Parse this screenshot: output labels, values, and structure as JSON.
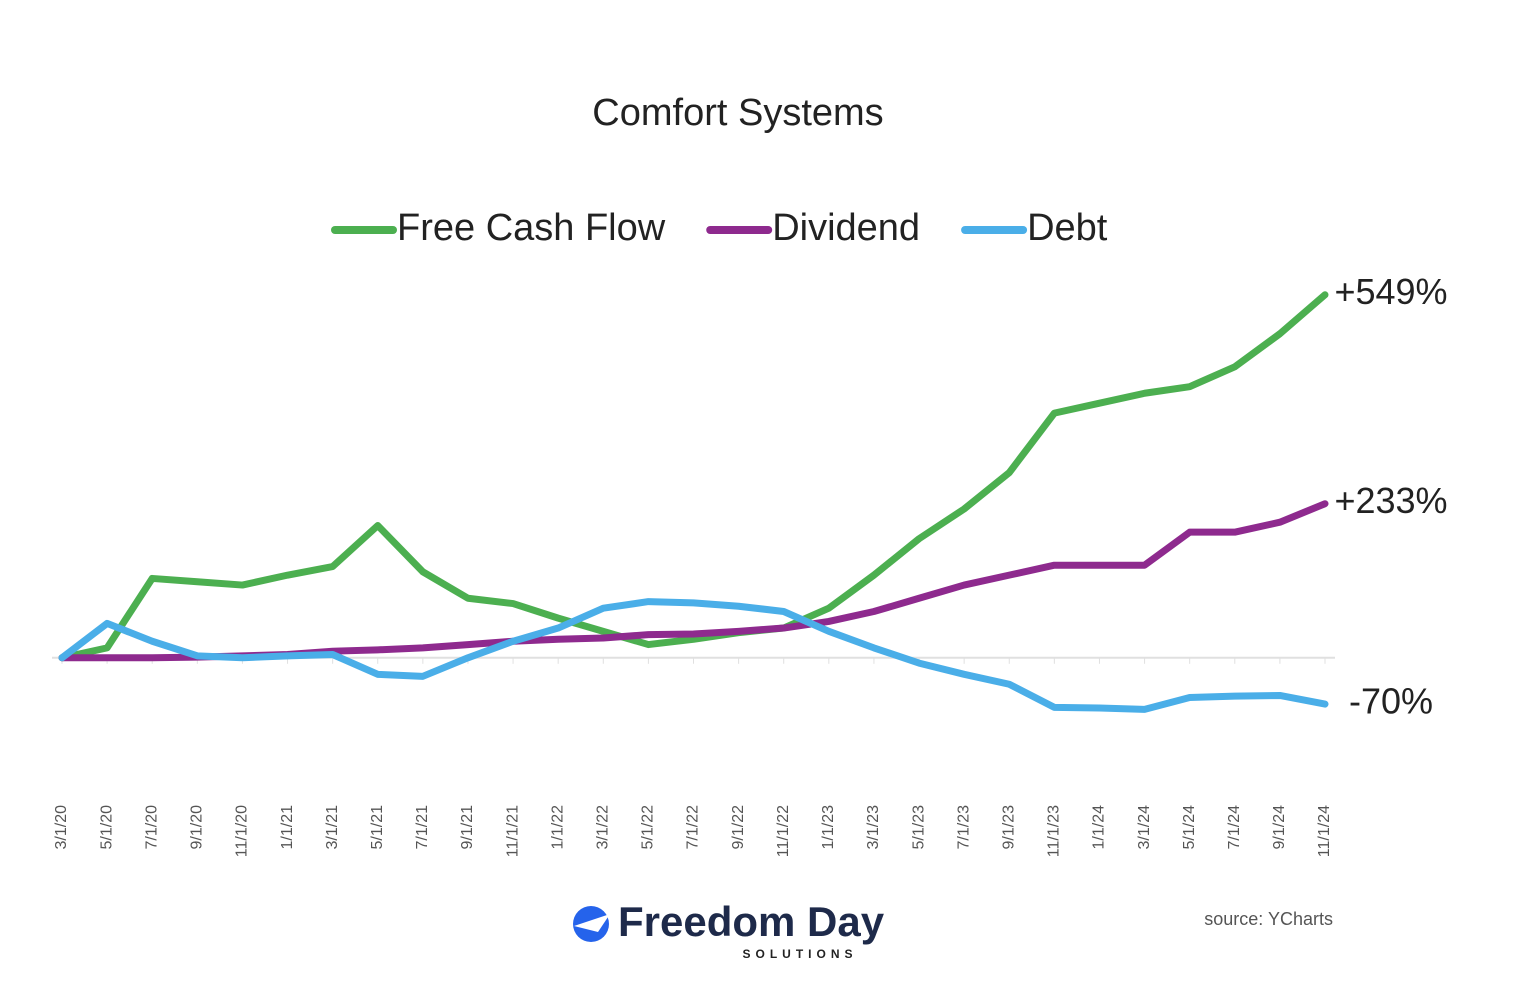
{
  "chart_data": {
    "type": "line",
    "title": "Comfort Systems",
    "categories": [
      "3/1/20",
      "5/1/20",
      "7/1/20",
      "9/1/20",
      "11/1/20",
      "1/1/21",
      "3/1/21",
      "5/1/21",
      "7/1/21",
      "9/1/21",
      "11/1/21",
      "1/1/22",
      "3/1/22",
      "5/1/22",
      "7/1/22",
      "9/1/22",
      "11/1/22",
      "1/1/23",
      "3/1/23",
      "5/1/23",
      "7/1/23",
      "9/1/23",
      "11/1/23",
      "1/1/24",
      "3/1/24",
      "5/1/24",
      "7/1/24",
      "9/1/24",
      "11/1/24"
    ],
    "series": [
      {
        "name": "Free Cash Flow",
        "color": "#4caf50",
        "label": "+549%",
        "values": [
          0,
          15,
          120,
          115,
          110,
          125,
          138,
          200,
          130,
          90,
          82,
          60,
          40,
          20,
          28,
          38,
          45,
          75,
          125,
          180,
          225,
          280,
          370,
          385,
          400,
          410,
          440,
          490,
          549
        ]
      },
      {
        "name": "Dividend",
        "color": "#8e2a8e",
        "label": "+233%",
        "values": [
          0,
          0,
          0,
          1,
          3,
          5,
          10,
          12,
          15,
          20,
          25,
          28,
          30,
          35,
          36,
          40,
          45,
          55,
          70,
          90,
          110,
          125,
          140,
          140,
          140,
          190,
          190,
          205,
          233
        ]
      },
      {
        "name": "Debt",
        "color": "#4aaee8",
        "label": "-70%",
        "values": [
          0,
          52,
          25,
          3,
          0,
          3,
          5,
          -25,
          -28,
          0,
          25,
          45,
          75,
          85,
          83,
          78,
          70,
          40,
          15,
          -8,
          -25,
          -40,
          -75,
          -76,
          -78,
          -60,
          -58,
          -57,
          -70
        ]
      }
    ],
    "ylim": [
      -150,
      600
    ],
    "source": "source: YCharts",
    "logo": {
      "name": "Freedom Day",
      "tagline": "SOLUTIONS"
    }
  }
}
